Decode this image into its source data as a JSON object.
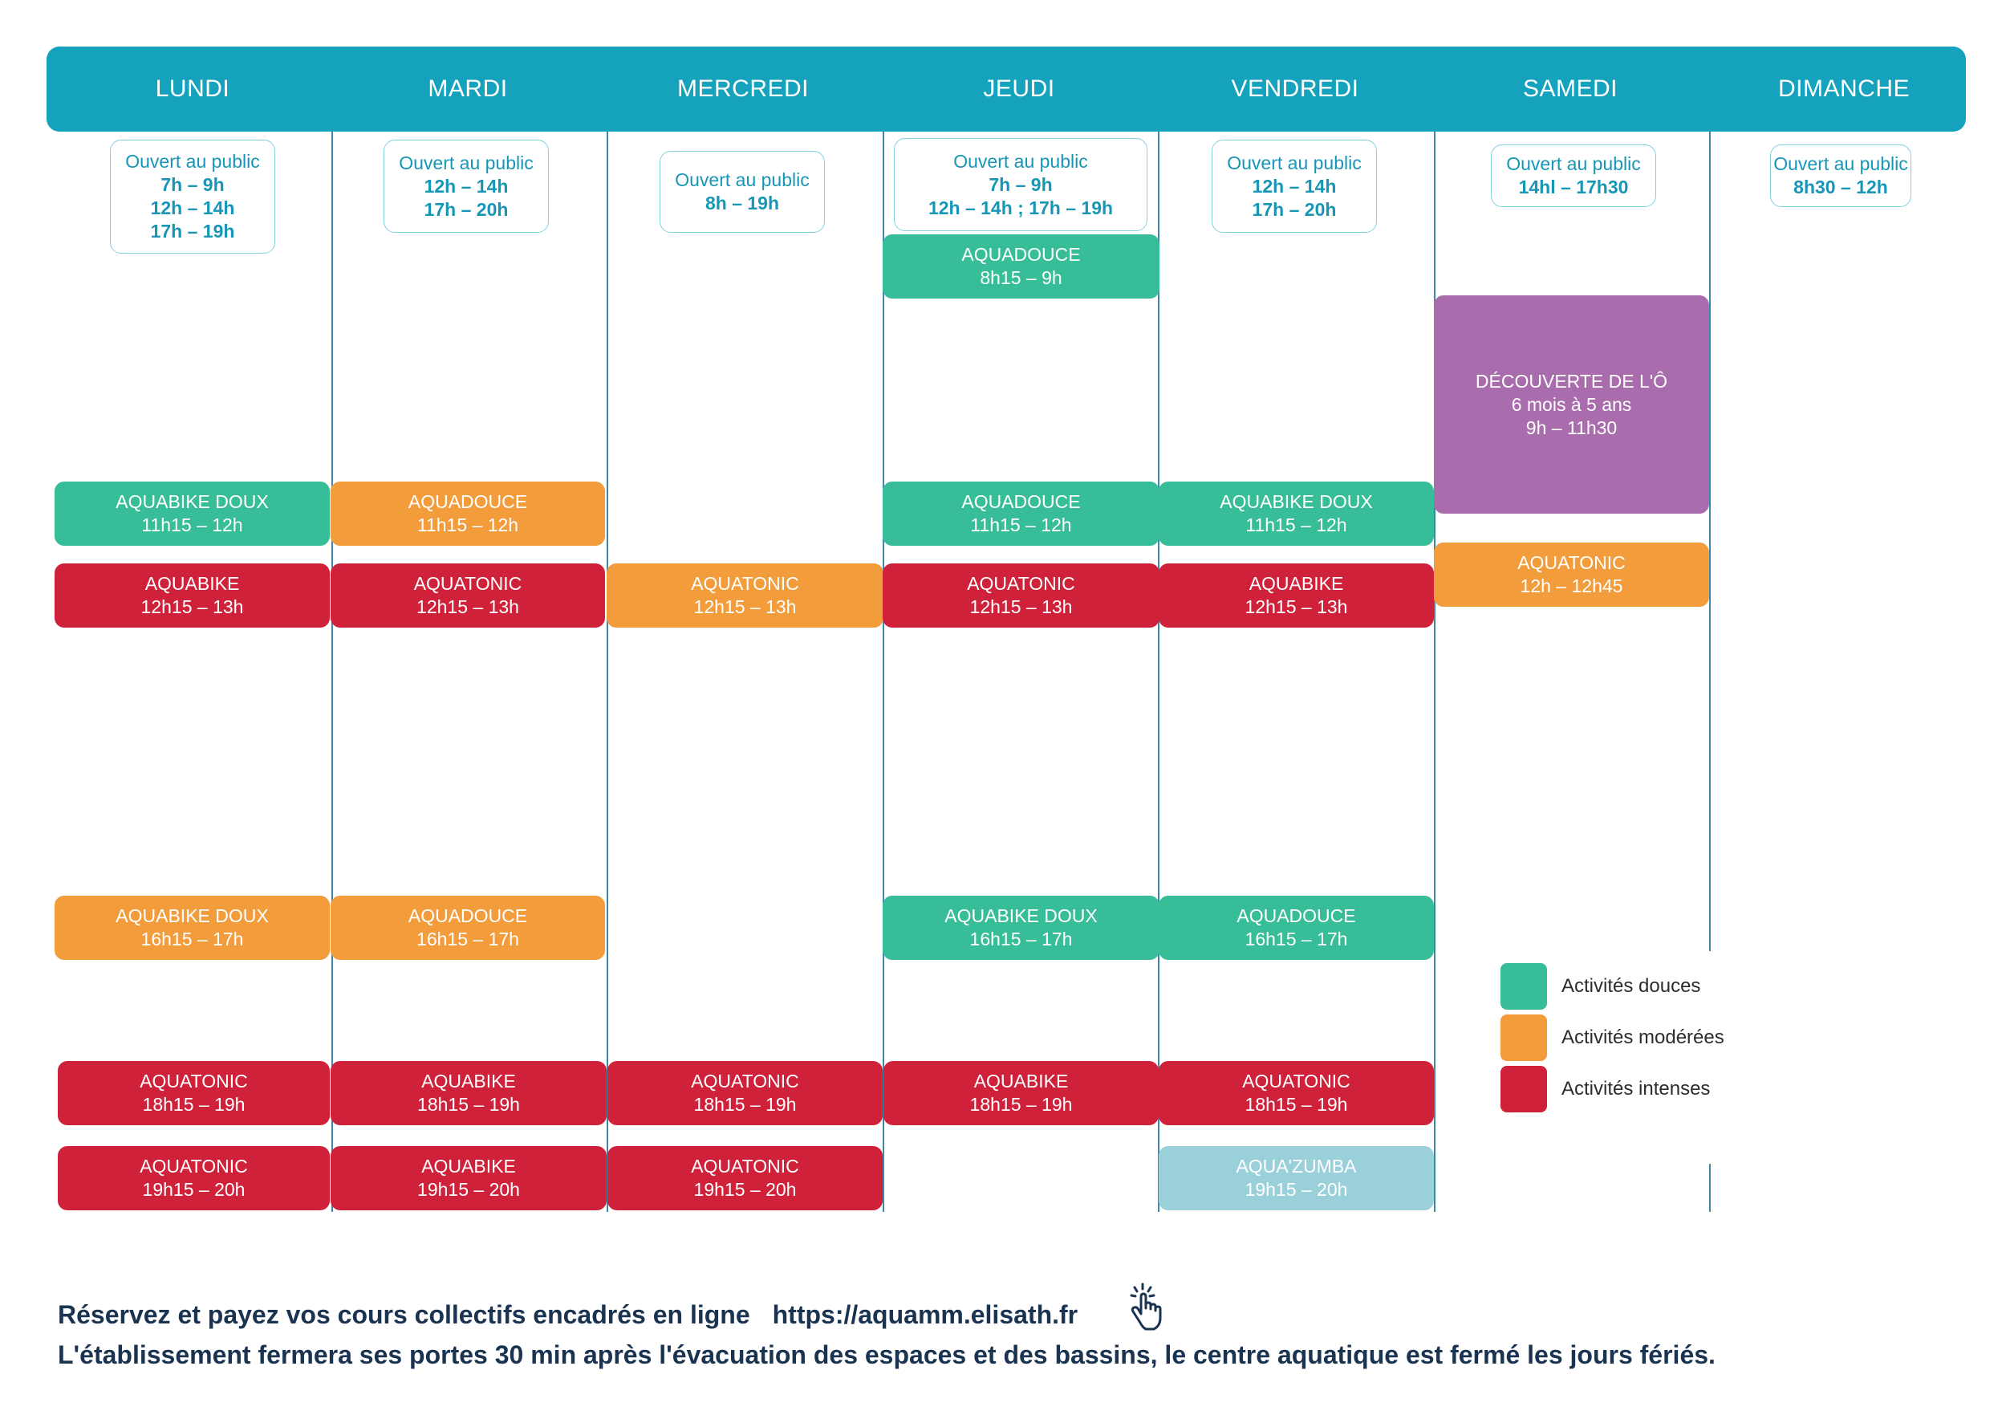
{
  "days": [
    "LUNDI",
    "MARDI",
    "MERCREDI",
    "JEUDI",
    "VENDREDI",
    "SAMEDI",
    "DIMANCHE"
  ],
  "open_hours": [
    {
      "day": "LUNDI",
      "title": "Ouvert au public",
      "hours": [
        "7h – 9h",
        "12h – 14h",
        "17h – 19h"
      ]
    },
    {
      "day": "MARDI",
      "title": "Ouvert au public",
      "hours": [
        "12h – 14h",
        "17h – 20h"
      ]
    },
    {
      "day": "MERCREDI",
      "title": "Ouvert au public",
      "hours": [
        "8h  – 19h"
      ]
    },
    {
      "day": "JEUDI",
      "title": "Ouvert au public",
      "hours": [
        "7h – 9h",
        "12h – 14h ; 17h – 19h"
      ]
    },
    {
      "day": "VENDREDI",
      "title": "Ouvert au public",
      "hours": [
        "12h – 14h",
        "17h – 20h"
      ]
    },
    {
      "day": "SAMEDI",
      "title": "Ouvert au public",
      "hours": [
        "14hl – 17h30"
      ]
    },
    {
      "day": "DIMANCHE",
      "title": "Ouvert au public",
      "hours": [
        "8h30 – 12h"
      ]
    }
  ],
  "activities": [
    {
      "day": "JEUDI",
      "name": "AQUADOUCE",
      "time": "8h15 – 9h",
      "category": "douce"
    },
    {
      "day": "SAMEDI",
      "name": "DÉCOUVERTE DE L'Ô",
      "sub": "6 mois à 5 ans",
      "time": "9h – 11h30",
      "category": "decouverte"
    },
    {
      "day": "LUNDI",
      "name": "AQUABIKE DOUX",
      "time": "11h15 – 12h",
      "category": "douce"
    },
    {
      "day": "MARDI",
      "name": "AQUADOUCE",
      "time": "11h15 – 12h",
      "category": "moderee"
    },
    {
      "day": "JEUDI",
      "name": "AQUADOUCE",
      "time": "11h15 – 12h",
      "category": "douce"
    },
    {
      "day": "VENDREDI",
      "name": "AQUABIKE DOUX",
      "time": "11h15 – 12h",
      "category": "douce"
    },
    {
      "day": "SAMEDI",
      "name": "AQUATONIC",
      "time": "12h – 12h45",
      "category": "moderee"
    },
    {
      "day": "LUNDI",
      "name": "AQUABIKE",
      "time": "12h15 – 13h",
      "category": "intense"
    },
    {
      "day": "MARDI",
      "name": "AQUATONIC",
      "time": "12h15 – 13h",
      "category": "intense"
    },
    {
      "day": "MERCREDI",
      "name": "AQUATONIC",
      "time": "12h15 – 13h",
      "category": "moderee"
    },
    {
      "day": "JEUDI",
      "name": "AQUATONIC",
      "time": "12h15 – 13h",
      "category": "intense"
    },
    {
      "day": "VENDREDI",
      "name": "AQUABIKE",
      "time": "12h15 – 13h",
      "category": "intense"
    },
    {
      "day": "LUNDI",
      "name": "AQUABIKE DOUX",
      "time": "16h15 – 17h",
      "category": "moderee"
    },
    {
      "day": "MARDI",
      "name": "AQUADOUCE",
      "time": "16h15 – 17h",
      "category": "moderee"
    },
    {
      "day": "JEUDI",
      "name": "AQUABIKE DOUX",
      "time": "16h15 – 17h",
      "category": "douce"
    },
    {
      "day": "VENDREDI",
      "name": "AQUADOUCE",
      "time": "16h15 – 17h",
      "category": "douce"
    },
    {
      "day": "LUNDI",
      "name": "AQUATONIC",
      "time": "18h15 – 19h",
      "category": "intense"
    },
    {
      "day": "MARDI",
      "name": "AQUABIKE",
      "time": "18h15 – 19h",
      "category": "intense"
    },
    {
      "day": "MERCREDI",
      "name": "AQUATONIC",
      "time": "18h15 – 19h",
      "category": "intense"
    },
    {
      "day": "JEUDI",
      "name": "AQUABIKE",
      "time": "18h15 – 19h",
      "category": "intense"
    },
    {
      "day": "VENDREDI",
      "name": "AQUATONIC",
      "time": "18h15 – 19h",
      "category": "intense"
    },
    {
      "day": "LUNDI",
      "name": "AQUATONIC",
      "time": "19h15 – 20h",
      "category": "intense"
    },
    {
      "day": "MARDI",
      "name": "AQUABIKE",
      "time": "19h15 – 20h",
      "category": "intense"
    },
    {
      "day": "MERCREDI",
      "name": "AQUATONIC",
      "time": "19h15 – 20h",
      "category": "intense"
    },
    {
      "day": "VENDREDI",
      "name": "AQUA'ZUMBA",
      "time": "19h15 – 20h",
      "category": "zumba"
    }
  ],
  "legend": [
    {
      "label": "Activités douces",
      "category": "douce"
    },
    {
      "label": "Activités modérées",
      "category": "moderee"
    },
    {
      "label": "Activités intenses",
      "category": "intense"
    }
  ],
  "colors": {
    "header": "#14a2bd",
    "douce": "#37bd97",
    "moderee": "#f39c3b",
    "intense": "#d0213a",
    "decouverte": "#a96cac",
    "zumba": "#9ad0da"
  },
  "footer": {
    "line1": "Réservez et payez vos cours collectifs encadrés en ligne",
    "url": "https://aquamm.elisath.fr",
    "line2": "L'établissement fermera ses portes 30 min après l'évacuation des espaces et des bassins, le centre aquatique est fermé les jours fériés.",
    "icon": "pointer-hand-icon"
  }
}
